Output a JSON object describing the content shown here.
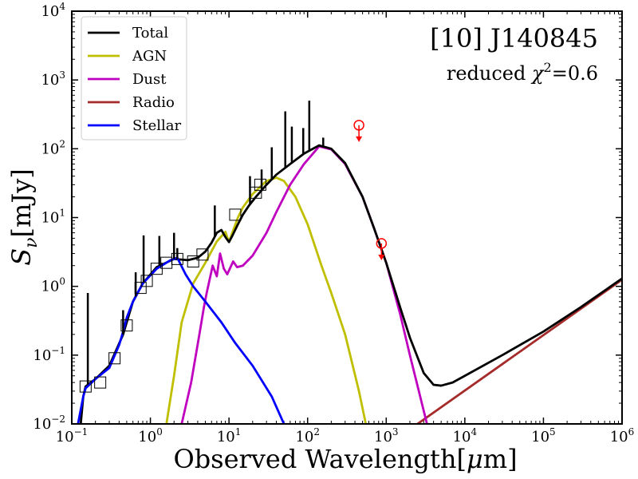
{
  "chart_data": {
    "type": "line",
    "x_scale": "log",
    "y_scale": "log",
    "xlim": [
      0.1,
      1000000
    ],
    "ylim": [
      0.01,
      10000
    ],
    "xlabel": {
      "main": "Observed Wavelength[",
      "unit": "μ",
      "tail": "m]"
    },
    "ylabel": {
      "main": "S",
      "sub": "ν",
      "tail": "[mJy]"
    },
    "x_ticks": [
      {
        "value": 0.1,
        "base": "10",
        "exp": "−1"
      },
      {
        "value": 1,
        "base": "10",
        "exp": "0"
      },
      {
        "value": 10,
        "base": "10",
        "exp": "1"
      },
      {
        "value": 100,
        "base": "10",
        "exp": "2"
      },
      {
        "value": 1000,
        "base": "10",
        "exp": "3"
      },
      {
        "value": 10000,
        "base": "10",
        "exp": "4"
      },
      {
        "value": 100000,
        "base": "10",
        "exp": "5"
      },
      {
        "value": 1000000,
        "base": "10",
        "exp": "6"
      }
    ],
    "y_ticks": [
      {
        "value": 0.01,
        "base": "10",
        "exp": "−2"
      },
      {
        "value": 0.1,
        "base": "10",
        "exp": "−1"
      },
      {
        "value": 1,
        "base": "10",
        "exp": "0"
      },
      {
        "value": 10,
        "base": "10",
        "exp": "1"
      },
      {
        "value": 100,
        "base": "10",
        "exp": "2"
      },
      {
        "value": 1000,
        "base": "10",
        "exp": "3"
      },
      {
        "value": 10000,
        "base": "10",
        "exp": "4"
      }
    ],
    "annotation_title": "[10] J140845",
    "annotation_chi": {
      "prefix": "reduced ",
      "symbol": "χ",
      "exp": "2",
      "suffix": "=0.6"
    },
    "legend": {
      "placement": "top-left",
      "entries": [
        {
          "label": "Total",
          "color": "#000000"
        },
        {
          "label": "AGN",
          "color": "#bfbf00"
        },
        {
          "label": "Dust",
          "color": "#bf00bf"
        },
        {
          "label": "Radio",
          "color": "#a52a2a"
        },
        {
          "label": "Stellar",
          "color": "#0000ff"
        }
      ]
    },
    "series": [
      {
        "name": "Total",
        "color": "#000000",
        "points": [
          [
            0.13,
            0.01
          ],
          [
            0.14,
            0.025
          ],
          [
            0.15,
            0.035
          ],
          [
            0.2,
            0.045
          ],
          [
            0.3,
            0.07
          ],
          [
            0.45,
            0.2
          ],
          [
            0.6,
            0.6
          ],
          [
            0.8,
            1.1
          ],
          [
            1.2,
            1.9
          ],
          [
            2,
            2.5
          ],
          [
            3,
            2.4
          ],
          [
            4,
            2.6
          ],
          [
            5,
            3.2
          ],
          [
            6,
            4.3
          ],
          [
            7,
            6.0
          ],
          [
            8,
            6.6
          ],
          [
            9,
            5.2
          ],
          [
            10,
            4.4
          ],
          [
            11,
            5.4
          ],
          [
            13,
            8.0
          ],
          [
            15,
            11
          ],
          [
            18,
            15
          ],
          [
            22,
            20
          ],
          [
            30,
            30
          ],
          [
            40,
            42
          ],
          [
            60,
            60
          ],
          [
            90,
            85
          ],
          [
            140,
            112
          ],
          [
            200,
            100
          ],
          [
            300,
            62
          ],
          [
            500,
            20
          ],
          [
            700,
            7
          ],
          [
            1000,
            2.2
          ],
          [
            1500,
            0.5
          ],
          [
            2000,
            0.18
          ],
          [
            3000,
            0.055
          ],
          [
            4000,
            0.037
          ],
          [
            5000,
            0.036
          ],
          [
            7000,
            0.04
          ],
          [
            10000,
            0.05
          ],
          [
            30000,
            0.1
          ],
          [
            100000,
            0.22
          ],
          [
            300000,
            0.5
          ],
          [
            1000000,
            1.3
          ]
        ]
      },
      {
        "name": "AGN",
        "color": "#bfbf00",
        "points": [
          [
            1.6,
            0.01
          ],
          [
            2,
            0.05
          ],
          [
            2.5,
            0.3
          ],
          [
            3.5,
            1.1
          ],
          [
            5,
            2.2
          ],
          [
            7,
            4.5
          ],
          [
            9,
            6.2
          ],
          [
            10,
            4.4
          ],
          [
            11,
            6
          ],
          [
            13,
            10
          ],
          [
            15,
            14
          ],
          [
            20,
            22
          ],
          [
            30,
            34
          ],
          [
            40,
            38
          ],
          [
            50,
            34
          ],
          [
            70,
            20
          ],
          [
            100,
            8
          ],
          [
            150,
            2
          ],
          [
            200,
            0.8
          ],
          [
            300,
            0.2
          ],
          [
            450,
            0.03
          ],
          [
            550,
            0.01
          ]
        ]
      },
      {
        "name": "Dust",
        "color": "#bf00bf",
        "points": [
          [
            2.5,
            0.01
          ],
          [
            3.3,
            0.04
          ],
          [
            4.2,
            0.2
          ],
          [
            4.8,
            0.5
          ],
          [
            5.2,
            0.8
          ],
          [
            6.2,
            2.0
          ],
          [
            7,
            1.4
          ],
          [
            7.7,
            3.0
          ],
          [
            8.6,
            1.8
          ],
          [
            9.5,
            1.5
          ],
          [
            11.3,
            2.3
          ],
          [
            12.7,
            1.9
          ],
          [
            15,
            2.0
          ],
          [
            20,
            2.8
          ],
          [
            30,
            6
          ],
          [
            40,
            12
          ],
          [
            60,
            30
          ],
          [
            90,
            60
          ],
          [
            140,
            108
          ],
          [
            200,
            98
          ],
          [
            300,
            60
          ],
          [
            500,
            20
          ],
          [
            700,
            7
          ],
          [
            1000,
            2.2
          ],
          [
            1500,
            0.4
          ],
          [
            2000,
            0.1
          ],
          [
            2600,
            0.03
          ],
          [
            3300,
            0.01
          ]
        ]
      },
      {
        "name": "Radio",
        "color": "#a52a2a",
        "points": [
          [
            2500,
            0.01
          ],
          [
            1000000,
            1.25
          ]
        ]
      },
      {
        "name": "Stellar",
        "color": "#0000ff",
        "points": [
          [
            0.12,
            0.01
          ],
          [
            0.14,
            0.025
          ],
          [
            0.15,
            0.033
          ],
          [
            0.2,
            0.045
          ],
          [
            0.3,
            0.065
          ],
          [
            0.4,
            0.14
          ],
          [
            0.45,
            0.22
          ],
          [
            0.5,
            0.35
          ],
          [
            0.6,
            0.6
          ],
          [
            0.8,
            1.1
          ],
          [
            1.2,
            1.8
          ],
          [
            1.8,
            2.4
          ],
          [
            2.2,
            2.6
          ],
          [
            2.8,
            1.5
          ],
          [
            3.5,
            1.0
          ],
          [
            5,
            0.6
          ],
          [
            8,
            0.3
          ],
          [
            12,
            0.15
          ],
          [
            20,
            0.07
          ],
          [
            35,
            0.025
          ],
          [
            50,
            0.01
          ]
        ]
      }
    ],
    "spikes": [
      {
        "x": 0.16,
        "y_top": 0.8
      },
      {
        "x": 0.45,
        "y_top": 0.45
      },
      {
        "x": 0.65,
        "y_top": 1.6
      },
      {
        "x": 0.82,
        "y_top": 5.5
      },
      {
        "x": 1.3,
        "y_top": 5.4
      },
      {
        "x": 2.0,
        "y_top": 6.0
      },
      {
        "x": 2.2,
        "y_top": 3.6
      },
      {
        "x": 6.6,
        "y_top": 15
      },
      {
        "x": 18.5,
        "y_top": 40
      },
      {
        "x": 26,
        "y_top": 50
      },
      {
        "x": 35,
        "y_top": 105
      },
      {
        "x": 52,
        "y_top": 350
      },
      {
        "x": 63,
        "y_top": 210
      },
      {
        "x": 88,
        "y_top": 200
      },
      {
        "x": 105,
        "y_top": 500
      },
      {
        "x": 158,
        "y_top": 145
      }
    ],
    "photometry": [
      {
        "x": 0.15,
        "y": 0.035
      },
      {
        "x": 0.23,
        "y": 0.04
      },
      {
        "x": 0.35,
        "y": 0.09
      },
      {
        "x": 0.5,
        "y": 0.27
      },
      {
        "x": 0.75,
        "y": 0.95
      },
      {
        "x": 0.9,
        "y": 1.2
      },
      {
        "x": 1.2,
        "y": 1.8
      },
      {
        "x": 1.6,
        "y": 2.2
      },
      {
        "x": 2.2,
        "y": 2.5
      },
      {
        "x": 3.5,
        "y": 2.3
      },
      {
        "x": 4.6,
        "y": 2.9
      },
      {
        "x": 12,
        "y": 11
      },
      {
        "x": 22,
        "y": 23
      },
      {
        "x": 25,
        "y": 30
      }
    ],
    "upper_limits": [
      {
        "x": 450,
        "y": 220
      },
      {
        "x": 870,
        "y": 4.2
      }
    ]
  }
}
